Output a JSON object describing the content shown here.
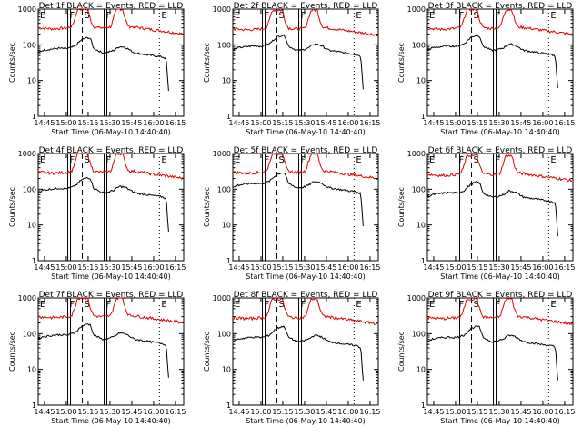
{
  "figure": {
    "layout": "3x3 grid of detector rate plots"
  },
  "colors": {
    "events": "#000000",
    "lld": "#e00000",
    "axis": "#000000",
    "background": "#ffffff"
  },
  "chart_data": {
    "type": "line",
    "layout": "grid 3x3",
    "ylabel": "Counts/sec",
    "xlabel": "Start Time (06-May-10 14:40:40)",
    "yscale": "log",
    "ylim": [
      1,
      1000
    ],
    "ytick_labels": [
      "1",
      "10",
      "100",
      "1000"
    ],
    "xlim_minutes_after_1440": [
      0,
      100
    ],
    "xtick_labels": [
      "14:45",
      "15:00",
      "15:15",
      "15:30",
      "15:45",
      "16:00",
      "16:15"
    ],
    "legend": "BLACK = Events, RED = LLD",
    "markers": [
      {
        "label": "E",
        "time": "14:40:40",
        "style": "dotted"
      },
      {
        "label": "F",
        "time": "15:01",
        "style": "solid"
      },
      {
        "label": "S",
        "time": "15:11",
        "style": "dashed"
      },
      {
        "label": "F",
        "time": "15:26",
        "style": "solid"
      },
      {
        "label": "E",
        "time": "16:04",
        "style": "dotted"
      }
    ],
    "panels": [
      {
        "title": "Det 1f BLACK = Events, RED = LLD",
        "events_level": 60,
        "lld_level": 300
      },
      {
        "title": "Det 2f BLACK = Events, RED = LLD",
        "events_level": 70,
        "lld_level": 280
      },
      {
        "title": "Det 3f BLACK = Events, RED = LLD",
        "events_level": 70,
        "lld_level": 290
      },
      {
        "title": "Det 4f BLACK = Events, RED = LLD",
        "events_level": 80,
        "lld_level": 300
      },
      {
        "title": "Det 5f BLACK = Events, RED = LLD",
        "events_level": 110,
        "lld_level": 300
      },
      {
        "title": "Det 6f BLACK = Events, RED = LLD",
        "events_level": 60,
        "lld_level": 260
      },
      {
        "title": "Det 7f BLACK = Events, RED = LLD",
        "events_level": 70,
        "lld_level": 300
      },
      {
        "title": "Det 8f BLACK = Events, RED = LLD",
        "events_level": 60,
        "lld_level": 280
      },
      {
        "title": "Det 9f BLACK = Events, RED = LLD",
        "events_level": 60,
        "lld_level": 280
      }
    ],
    "series_shape": {
      "description": "rates in counts/sec vs minutes after 14:40:40; shared shape scaled per panel",
      "events": [
        [
          0,
          60
        ],
        [
          3,
          70
        ],
        [
          8,
          75
        ],
        [
          14,
          80
        ],
        [
          20,
          78
        ],
        [
          25,
          90
        ],
        [
          30,
          140
        ],
        [
          34,
          160
        ],
        [
          36,
          150
        ],
        [
          38,
          80
        ],
        [
          44,
          60
        ],
        [
          48,
          62
        ],
        [
          52,
          70
        ],
        [
          56,
          90
        ],
        [
          60,
          85
        ],
        [
          66,
          60
        ],
        [
          72,
          55
        ],
        [
          78,
          50
        ],
        [
          82,
          48
        ],
        [
          86,
          45
        ],
        [
          88,
          40
        ],
        [
          90,
          3
        ]
      ],
      "lld": [
        [
          0,
          300
        ],
        [
          5,
          290
        ],
        [
          10,
          280
        ],
        [
          16,
          290
        ],
        [
          20,
          300
        ],
        [
          23,
          320
        ],
        [
          25,
          500
        ],
        [
          27,
          1000
        ],
        [
          34,
          1000
        ],
        [
          36,
          500
        ],
        [
          38,
          320
        ],
        [
          42,
          300
        ],
        [
          46,
          300
        ],
        [
          50,
          320
        ],
        [
          52,
          600
        ],
        [
          54,
          1000
        ],
        [
          58,
          1000
        ],
        [
          60,
          500
        ],
        [
          62,
          330
        ],
        [
          70,
          300
        ],
        [
          80,
          260
        ],
        [
          90,
          230
        ],
        [
          100,
          200
        ]
      ]
    }
  }
}
